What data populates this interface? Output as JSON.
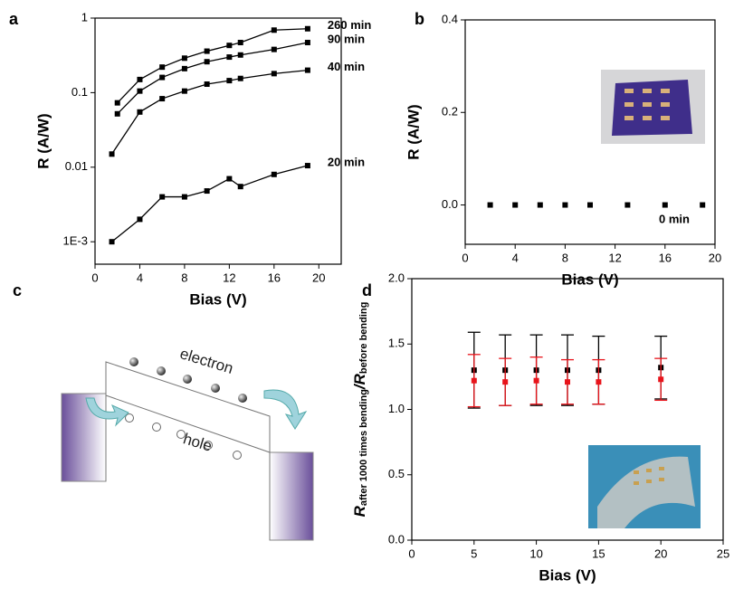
{
  "chart_data": [
    {
      "type": "scatter-line",
      "panel": "a",
      "xlabel": "Bias (V)",
      "ylabel": "R (A/W)",
      "xlim": [
        0,
        22
      ],
      "xticks": [
        0,
        4,
        8,
        12,
        16,
        20
      ],
      "ylim": [
        0.0005,
        1
      ],
      "ylog": true,
      "yticks": [
        {
          "value": 0.001,
          "label": "1E-3"
        },
        0.01,
        0.1,
        1
      ],
      "series": [
        {
          "name": "260 min",
          "color": "#000000",
          "x": [
            2,
            4,
            6,
            8,
            10,
            12,
            13,
            16,
            19
          ],
          "values": [
            0.073,
            0.15,
            0.22,
            0.29,
            0.36,
            0.43,
            0.47,
            0.69,
            0.72
          ]
        },
        {
          "name": "90 min",
          "color": "#000000",
          "x": [
            2,
            4,
            6,
            8,
            10,
            12,
            13,
            16,
            19
          ],
          "values": [
            0.052,
            0.105,
            0.16,
            0.21,
            0.26,
            0.3,
            0.32,
            0.38,
            0.47
          ]
        },
        {
          "name": "40 min",
          "color": "#000000",
          "x": [
            1.5,
            4,
            6,
            8,
            10,
            12,
            13,
            16,
            19
          ],
          "values": [
            0.015,
            0.055,
            0.083,
            0.105,
            0.13,
            0.145,
            0.155,
            0.18,
            0.2
          ]
        },
        {
          "name": "20 min",
          "color": "#000000",
          "x": [
            1.5,
            4,
            6,
            8,
            10,
            12,
            13,
            16,
            19
          ],
          "values": [
            0.001,
            0.002,
            0.004,
            0.004,
            0.0048,
            0.007,
            0.0055,
            0.008,
            0.0105
          ]
        }
      ]
    },
    {
      "type": "scatter",
      "panel": "b",
      "xlabel": "Bias (V)",
      "ylabel": "R (A/W)",
      "xlim": [
        0,
        20
      ],
      "xticks": [
        0,
        4,
        8,
        12,
        16,
        20
      ],
      "ylim": [
        -0.085,
        0.4
      ],
      "yticks": [
        {
          "value": 0,
          "label": "0.0"
        },
        0.2,
        0.4
      ],
      "annotation": "0 min",
      "series": [
        {
          "name": "0 min",
          "color": "#000000",
          "x": [
            2,
            4,
            6,
            8,
            10,
            13,
            16,
            19
          ],
          "values": [
            0,
            0,
            0,
            0,
            0,
            0,
            0,
            0
          ]
        }
      ]
    },
    {
      "type": "errorbar",
      "panel": "d",
      "xlabel": "Bias (V)",
      "ylabel": [
        "R",
        "after 1000 times bending",
        "/R",
        "before bending"
      ],
      "xlim": [
        0,
        25
      ],
      "xticks": [
        0,
        5,
        10,
        15,
        20,
        25
      ],
      "ylim": [
        0,
        2
      ],
      "yticks": [
        {
          "value": 0,
          "label": "0.0"
        },
        0.5,
        {
          "value": 1,
          "label": "1.0"
        },
        1.5,
        {
          "value": 2,
          "label": "2.0"
        }
      ],
      "series": [
        {
          "color": "#000000",
          "x": [
            5,
            7.5,
            10,
            12.5,
            15,
            20
          ],
          "values": [
            1.3,
            1.3,
            1.3,
            1.3,
            1.3,
            1.32
          ],
          "errors": [
            0.29,
            0.27,
            0.27,
            0.27,
            0.26,
            0.24
          ]
        },
        {
          "color": "#e8141b",
          "x": [
            5,
            7.5,
            10,
            12.5,
            15,
            20
          ],
          "values": [
            1.22,
            1.21,
            1.22,
            1.21,
            1.21,
            1.23
          ],
          "errors": [
            0.2,
            0.18,
            0.18,
            0.17,
            0.17,
            0.16
          ]
        }
      ]
    }
  ],
  "diagram": {
    "panel": "c",
    "electron": "electron",
    "hole": "hole"
  }
}
